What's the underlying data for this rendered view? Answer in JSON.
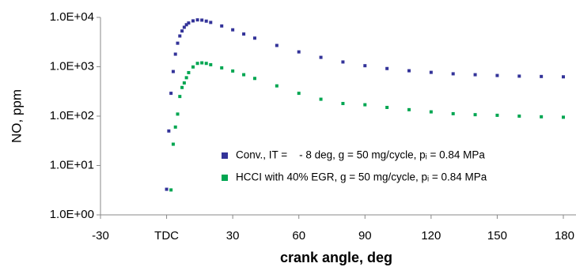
{
  "chart_data": {
    "type": "scatter",
    "x_label": "crank angle, deg",
    "y_label": "NO, ppm",
    "x": [
      0,
      1,
      2,
      3,
      4,
      5,
      6,
      7,
      8,
      9,
      10,
      12,
      14,
      16,
      18,
      20,
      25,
      30,
      35,
      40,
      50,
      60,
      70,
      80,
      90,
      100,
      110,
      120,
      130,
      140,
      150,
      160,
      170,
      180
    ],
    "series": [
      {
        "name": "Conv., IT =    - 8 deg, g = 50 mg/cycle, pᵢ = 0.84 MPa",
        "color": "#333399",
        "values": [
          3.3,
          50,
          290,
          800,
          1800,
          3000,
          4200,
          5300,
          6300,
          7100,
          7700,
          8500,
          8900,
          8800,
          8400,
          7900,
          6700,
          5600,
          4600,
          3800,
          2700,
          2000,
          1550,
          1250,
          1050,
          920,
          830,
          770,
          720,
          690,
          665,
          645,
          635,
          625
        ]
      },
      {
        "name": "HCCI with 40% EGR, g = 50 mg/cycle, pᵢ = 0.84 MPa",
        "color": "#00a651",
        "values": [
          null,
          null,
          3.2,
          27,
          60,
          110,
          250,
          380,
          470,
          600,
          760,
          990,
          1170,
          1200,
          1170,
          1100,
          950,
          820,
          690,
          580,
          410,
          290,
          220,
          180,
          170,
          150,
          135,
          122,
          112,
          107,
          104,
          100,
          97,
          95
        ]
      }
    ],
    "xlim": [
      -30,
      180
    ],
    "xticks": [
      -30,
      {
        "value": 0,
        "label": "TDC"
      },
      30,
      60,
      90,
      120,
      150,
      180
    ],
    "ylim": [
      1,
      10000
    ],
    "yticks": [
      {
        "value": 1,
        "label": "1.0E+00"
      },
      {
        "value": 10,
        "label": "1.0E+01"
      },
      {
        "value": 100,
        "label": "1.0E+02"
      },
      {
        "value": 1000,
        "label": "1.0E+03"
      },
      {
        "value": 10000,
        "label": "1.0E+04"
      }
    ],
    "log_y": true,
    "tdc_color": "#333399"
  }
}
